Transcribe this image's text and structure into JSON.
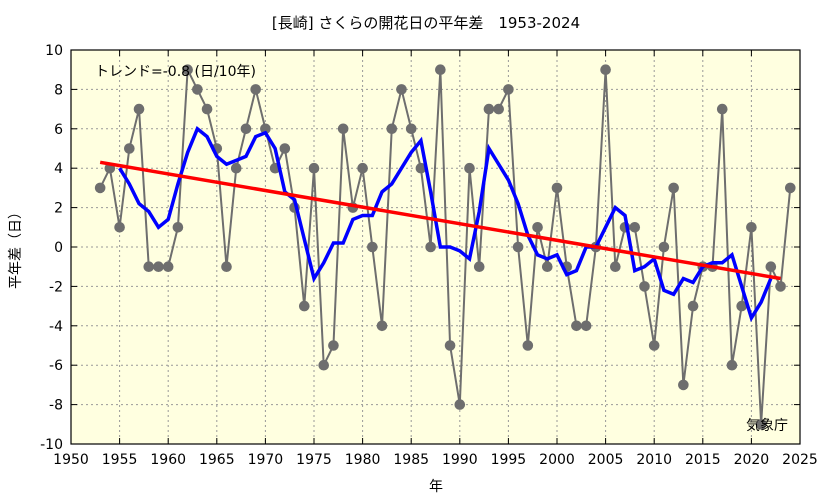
{
  "chart_data": {
    "type": "line",
    "title": "[長崎] さくらの開花日の平年差　1953-2024",
    "xlabel": "年",
    "ylabel": "平年差（日）",
    "xlim": [
      1950,
      2025
    ],
    "ylim": [
      -10,
      10
    ],
    "xticks": [
      1950,
      1955,
      1960,
      1965,
      1970,
      1975,
      1980,
      1985,
      1990,
      1995,
      2000,
      2005,
      2010,
      2015,
      2020,
      2025
    ],
    "yticks": [
      -10,
      -8,
      -6,
      -4,
      -2,
      0,
      2,
      4,
      6,
      8,
      10
    ],
    "grid": true,
    "background": "#ffffe0",
    "annotations": {
      "trend": "トレンド=-0.8 (日/10年)",
      "source": "気象庁"
    },
    "series": [
      {
        "role": "annual",
        "color": "#6e6e6e",
        "x": [
          1953,
          1954,
          1955,
          1956,
          1957,
          1958,
          1959,
          1960,
          1961,
          1962,
          1963,
          1964,
          1965,
          1966,
          1967,
          1968,
          1969,
          1970,
          1971,
          1972,
          1973,
          1974,
          1975,
          1976,
          1977,
          1978,
          1979,
          1980,
          1981,
          1982,
          1983,
          1984,
          1985,
          1986,
          1987,
          1988,
          1989,
          1990,
          1991,
          1992,
          1993,
          1994,
          1995,
          1996,
          1997,
          1998,
          1999,
          2000,
          2001,
          2002,
          2003,
          2004,
          2005,
          2006,
          2007,
          2008,
          2009,
          2010,
          2011,
          2012,
          2013,
          2014,
          2015,
          2016,
          2017,
          2018,
          2019,
          2020,
          2021,
          2022,
          2023,
          2024
        ],
        "y": [
          3,
          4,
          1,
          5,
          7,
          -1,
          -1,
          -1,
          1,
          9,
          8,
          7,
          5,
          -1,
          4,
          6,
          8,
          6,
          4,
          5,
          2,
          -3,
          4,
          -6,
          -5,
          6,
          2,
          4,
          0,
          -4,
          6,
          8,
          6,
          4,
          0,
          9,
          -5,
          -8,
          4,
          -1,
          7,
          7,
          8,
          0,
          -5,
          1,
          -1,
          3,
          -1,
          -4,
          -4,
          0,
          9,
          -1,
          1,
          1,
          -2,
          -5,
          0,
          3,
          -7,
          -3,
          -1,
          -1,
          7,
          -6,
          -3,
          1,
          -9,
          -1,
          -2,
          3
        ]
      },
      {
        "role": "5-year moving average",
        "color": "#0000ff",
        "x": [
          1955,
          1956,
          1957,
          1958,
          1959,
          1960,
          1961,
          1962,
          1963,
          1964,
          1965,
          1966,
          1967,
          1968,
          1969,
          1970,
          1971,
          1972,
          1973,
          1974,
          1975,
          1976,
          1977,
          1978,
          1979,
          1980,
          1981,
          1982,
          1983,
          1984,
          1985,
          1986,
          1987,
          1988,
          1989,
          1990,
          1991,
          1992,
          1993,
          1994,
          1995,
          1996,
          1997,
          1998,
          1999,
          2000,
          2001,
          2002,
          2003,
          2004,
          2005,
          2006,
          2007,
          2008,
          2009,
          2010,
          2011,
          2012,
          2013,
          2014,
          2015,
          2016,
          2017,
          2018,
          2019,
          2020,
          2021,
          2022
        ],
        "y": [
          4.0,
          3.2,
          2.2,
          1.8,
          1.0,
          1.4,
          3.2,
          4.8,
          6.0,
          5.6,
          4.6,
          4.2,
          4.4,
          4.6,
          5.6,
          5.8,
          5.0,
          2.8,
          2.4,
          0.4,
          -1.6,
          -0.8,
          0.2,
          0.2,
          1.4,
          1.6,
          1.6,
          2.8,
          3.2,
          4.0,
          4.8,
          5.4,
          2.8,
          0.0,
          0.0,
          -0.2,
          -0.6,
          1.8,
          5.0,
          4.2,
          3.4,
          2.2,
          0.6,
          -0.4,
          -0.6,
          -0.4,
          -1.4,
          -1.2,
          0.0,
          0.0,
          1.0,
          2.0,
          1.6,
          -1.2,
          -1.0,
          -0.6,
          -2.2,
          -2.4,
          -1.6,
          -1.8,
          -1.0,
          -0.8,
          -0.8,
          -0.4,
          -2.0,
          -3.6,
          -2.8,
          -1.6
        ]
      },
      {
        "role": "trend",
        "color": "#ff0000",
        "x": [
          1953,
          2023
        ],
        "y": [
          4.3,
          -1.6
        ]
      }
    ]
  }
}
